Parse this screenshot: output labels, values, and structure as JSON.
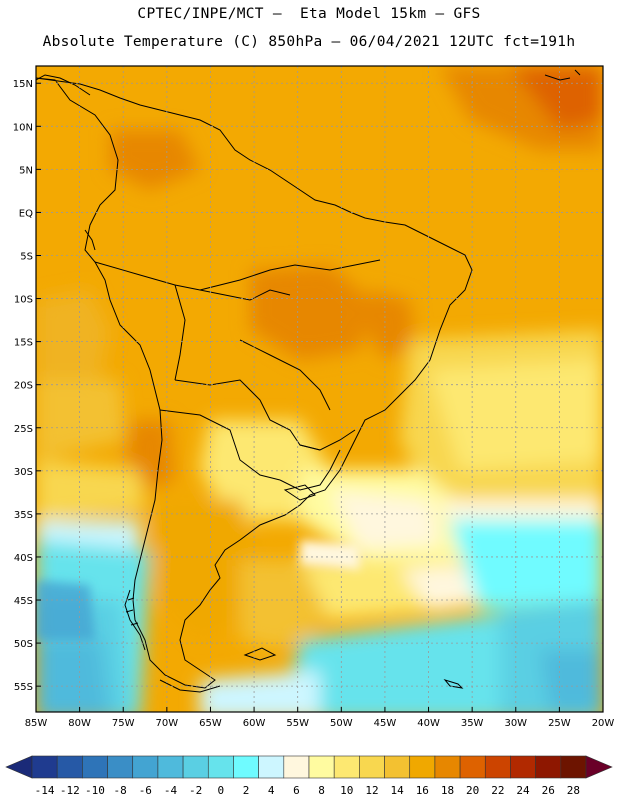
{
  "header": {
    "line1": "CPTEC/INPE/MCT –  Eta Model 15km – GFS",
    "line2": "Absolute Temperature (C) 850hPa – 06/04/2021 12UTC fct=191h"
  },
  "map": {
    "lon_range": [
      -85,
      -20
    ],
    "lat_range": [
      -58,
      17
    ],
    "lat_ticks": [
      "15N",
      "10N",
      "5N",
      "EQ",
      "5S",
      "10S",
      "15S",
      "20S",
      "25S",
      "30S",
      "35S",
      "40S",
      "45S",
      "50S",
      "55S"
    ],
    "lat_values": [
      15,
      10,
      5,
      0,
      -5,
      -10,
      -15,
      -20,
      -25,
      -30,
      -35,
      -40,
      -45,
      -50,
      -55
    ],
    "lon_ticks": [
      "85W",
      "80W",
      "75W",
      "70W",
      "65W",
      "60W",
      "55W",
      "50W",
      "45W",
      "40W",
      "35W",
      "30W",
      "25W",
      "20W"
    ],
    "lon_values": [
      -85,
      -80,
      -75,
      -70,
      -65,
      -60,
      -55,
      -50,
      -45,
      -40,
      -35,
      -30,
      -25,
      -20
    ]
  },
  "colorbar": {
    "labels": [
      "-14",
      "-12",
      "-10",
      "-8",
      "-6",
      "-4",
      "-2",
      "0",
      "2",
      "4",
      "6",
      "8",
      "10",
      "12",
      "14",
      "16",
      "18",
      "20",
      "22",
      "24",
      "26",
      "28"
    ],
    "colors": [
      "#1f3b8f",
      "#2659a6",
      "#2e74b8",
      "#3a8ec6",
      "#43a4d2",
      "#4fbadc",
      "#5acfe3",
      "#66e3ec",
      "#6ffbff",
      "#cdf6ff",
      "#fff7de",
      "#fffba0",
      "#fde871",
      "#f8d74f",
      "#f3c131",
      "#f0a800",
      "#e78700",
      "#de6200",
      "#cc4400",
      "#b12900",
      "#8e1700",
      "#6d1400"
    ],
    "left_arrow_color": "#1a2a78",
    "right_arrow_color": "#6a0028"
  }
}
